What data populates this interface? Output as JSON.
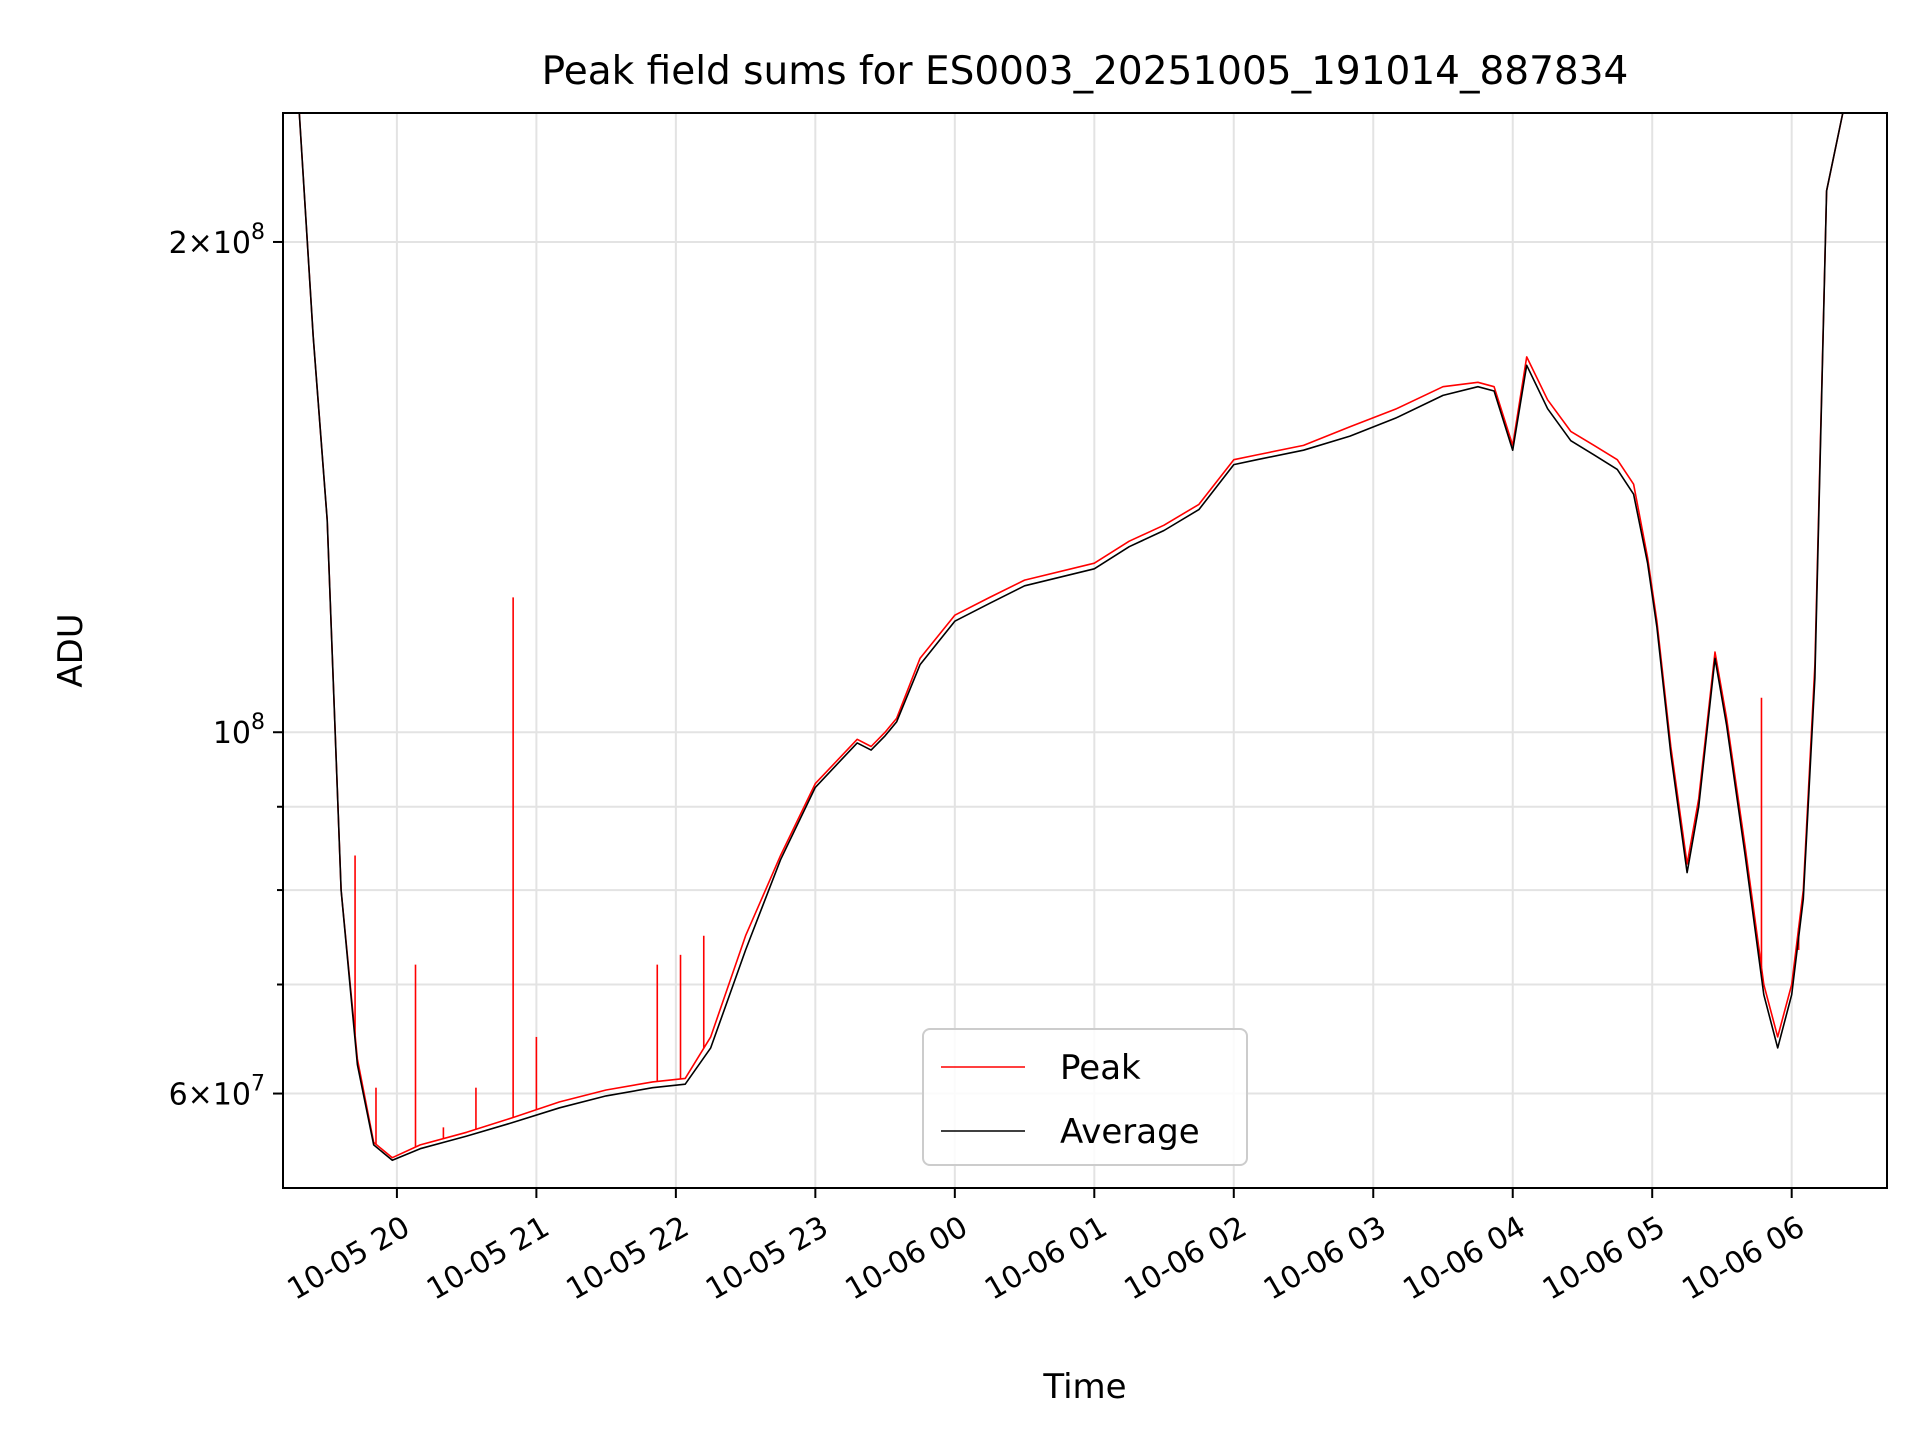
{
  "chart_data": {
    "type": "line",
    "title": "Peak field sums for ES0003_20251005_191014_887834",
    "xlabel": "Time",
    "ylabel": "ADU",
    "yscale": "log",
    "ylim": [
      52500000,
      240000000
    ],
    "xlim": [
      "2025-10-05 19:11",
      "2025-10-06 06:41"
    ],
    "x_ticks": [
      "10-05 20",
      "10-05 21",
      "10-05 22",
      "10-05 23",
      "10-06 00",
      "10-06 01",
      "10-06 02",
      "10-06 03",
      "10-06 04",
      "10-06 05",
      "10-06 06"
    ],
    "x_tick_values": [
      "2025-10-05 20:00",
      "2025-10-05 21:00",
      "2025-10-05 22:00",
      "2025-10-05 23:00",
      "2025-10-06 00:00",
      "2025-10-06 01:00",
      "2025-10-06 02:00",
      "2025-10-06 03:00",
      "2025-10-06 04:00",
      "2025-10-06 05:00",
      "2025-10-06 06:00"
    ],
    "y_tick_labels": [
      {
        "value": 60000000,
        "base": "6×10",
        "exp": "7"
      },
      {
        "value": 100000000,
        "base": "10",
        "exp": "8"
      },
      {
        "value": 200000000,
        "base": "2×10",
        "exp": "8"
      }
    ],
    "y_minor_ticks": [
      70000000,
      80000000,
      90000000
    ],
    "grid": true,
    "legend_position": "bottom-center",
    "series": [
      {
        "name": "Peak",
        "color": "#ff0000",
        "x": [
          "2025-10-05 19:11",
          "2025-10-05 19:18",
          "2025-10-05 19:24",
          "2025-10-05 19:30",
          "2025-10-05 19:36",
          "2025-10-05 19:43",
          "2025-10-05 19:50",
          "2025-10-05 19:58",
          "2025-10-05 20:10",
          "2025-10-05 20:30",
          "2025-10-05 20:50",
          "2025-10-05 21:10",
          "2025-10-05 21:30",
          "2025-10-05 21:50",
          "2025-10-05 22:04",
          "2025-10-05 22:15",
          "2025-10-05 22:30",
          "2025-10-05 22:45",
          "2025-10-05 23:00",
          "2025-10-05 23:18",
          "2025-10-05 23:24",
          "2025-10-05 23:30",
          "2025-10-05 23:35",
          "2025-10-05 23:45",
          "2025-10-06 00:00",
          "2025-10-06 00:15",
          "2025-10-06 00:30",
          "2025-10-06 01:00",
          "2025-10-06 01:15",
          "2025-10-06 01:30",
          "2025-10-06 01:45",
          "2025-10-06 02:00",
          "2025-10-06 02:10",
          "2025-10-06 02:30",
          "2025-10-06 02:50",
          "2025-10-06 03:10",
          "2025-10-06 03:30",
          "2025-10-06 03:45",
          "2025-10-06 03:52",
          "2025-10-06 04:00",
          "2025-10-06 04:06",
          "2025-10-06 04:15",
          "2025-10-06 04:25",
          "2025-10-06 04:35",
          "2025-10-06 04:45",
          "2025-10-06 04:52",
          "2025-10-06 04:58",
          "2025-10-06 05:02",
          "2025-10-06 05:08",
          "2025-10-06 05:15",
          "2025-10-06 05:20",
          "2025-10-06 05:27",
          "2025-10-06 05:32",
          "2025-10-06 05:40",
          "2025-10-06 05:48",
          "2025-10-06 05:54",
          "2025-10-06 06:00",
          "2025-10-06 06:05",
          "2025-10-06 06:10",
          "2025-10-06 06:15",
          "2025-10-06 06:22",
          "2025-10-06 06:30",
          "2025-10-06 06:41"
        ],
        "values": [
          240000000,
          240000000,
          175000000,
          135000000,
          80000000,
          63000000,
          56000000,
          54800000,
          55800000,
          56800000,
          58000000,
          59300000,
          60300000,
          61000000,
          61300000,
          65000000,
          75000000,
          84000000,
          93000000,
          99000000,
          98000000,
          100000000,
          102000000,
          111000000,
          118000000,
          121000000,
          124000000,
          127000000,
          131000000,
          134000000,
          138000000,
          147000000,
          148000000,
          150000000,
          154000000,
          158000000,
          163000000,
          164000000,
          163000000,
          150000000,
          170000000,
          160000000,
          153000000,
          150000000,
          147000000,
          142000000,
          128000000,
          117000000,
          98000000,
          83000000,
          91000000,
          112000000,
          102000000,
          85000000,
          70000000,
          65000000,
          70000000,
          80000000,
          110000000,
          215000000,
          240000000,
          240000000,
          240000000
        ],
        "spikes": [
          {
            "x": "2025-10-05 19:42",
            "value": 84000000
          },
          {
            "x": "2025-10-05 19:51",
            "value": 60500000
          },
          {
            "x": "2025-10-05 20:08",
            "value": 72000000
          },
          {
            "x": "2025-10-05 20:20",
            "value": 57200000
          },
          {
            "x": "2025-10-05 20:34",
            "value": 60500000
          },
          {
            "x": "2025-10-05 20:50",
            "value": 121000000
          },
          {
            "x": "2025-10-05 21:00",
            "value": 65000000
          },
          {
            "x": "2025-10-05 21:52",
            "value": 72000000
          },
          {
            "x": "2025-10-05 22:02",
            "value": 73000000
          },
          {
            "x": "2025-10-05 22:12",
            "value": 75000000
          },
          {
            "x": "2025-10-06 05:47",
            "value": 105000000
          },
          {
            "x": "2025-10-06 06:03",
            "value": 73500000
          }
        ]
      },
      {
        "name": "Average",
        "color": "#000000",
        "x": [
          "2025-10-05 19:11",
          "2025-10-05 19:18",
          "2025-10-05 19:24",
          "2025-10-05 19:30",
          "2025-10-05 19:36",
          "2025-10-05 19:43",
          "2025-10-05 19:50",
          "2025-10-05 19:58",
          "2025-10-05 20:10",
          "2025-10-05 20:30",
          "2025-10-05 20:50",
          "2025-10-05 21:10",
          "2025-10-05 21:30",
          "2025-10-05 21:50",
          "2025-10-05 22:04",
          "2025-10-05 22:15",
          "2025-10-05 22:30",
          "2025-10-05 22:45",
          "2025-10-05 23:00",
          "2025-10-05 23:18",
          "2025-10-05 23:24",
          "2025-10-05 23:30",
          "2025-10-05 23:35",
          "2025-10-05 23:45",
          "2025-10-06 00:00",
          "2025-10-06 00:15",
          "2025-10-06 00:30",
          "2025-10-06 01:00",
          "2025-10-06 01:15",
          "2025-10-06 01:30",
          "2025-10-06 01:45",
          "2025-10-06 02:00",
          "2025-10-06 02:10",
          "2025-10-06 02:30",
          "2025-10-06 02:50",
          "2025-10-06 03:10",
          "2025-10-06 03:30",
          "2025-10-06 03:45",
          "2025-10-06 03:52",
          "2025-10-06 04:00",
          "2025-10-06 04:06",
          "2025-10-06 04:15",
          "2025-10-06 04:25",
          "2025-10-06 04:35",
          "2025-10-06 04:45",
          "2025-10-06 04:52",
          "2025-10-06 04:58",
          "2025-10-06 05:02",
          "2025-10-06 05:08",
          "2025-10-06 05:15",
          "2025-10-06 05:20",
          "2025-10-06 05:27",
          "2025-10-06 05:32",
          "2025-10-06 05:40",
          "2025-10-06 05:48",
          "2025-10-06 05:54",
          "2025-10-06 06:00",
          "2025-10-06 06:05",
          "2025-10-06 06:10",
          "2025-10-06 06:15",
          "2025-10-06 06:22",
          "2025-10-06 06:30",
          "2025-10-06 06:41"
        ],
        "values": [
          240000000,
          240000000,
          175000000,
          135000000,
          80000000,
          62500000,
          55800000,
          54600000,
          55500000,
          56500000,
          57600000,
          58800000,
          59800000,
          60500000,
          60800000,
          64000000,
          73500000,
          83500000,
          92500000,
          98500000,
          97500000,
          99500000,
          101500000,
          110000000,
          117000000,
          120000000,
          123000000,
          126000000,
          130000000,
          133000000,
          137000000,
          146000000,
          147000000,
          149000000,
          152000000,
          156000000,
          161000000,
          163000000,
          162000000,
          149000000,
          168000000,
          158000000,
          151000000,
          148000000,
          145000000,
          140000000,
          127000000,
          116000000,
          97000000,
          82000000,
          90000000,
          111000000,
          101000000,
          84000000,
          69000000,
          64000000,
          69000000,
          79000000,
          108000000,
          215000000,
          240000000,
          240000000,
          240000000
        ]
      }
    ]
  }
}
